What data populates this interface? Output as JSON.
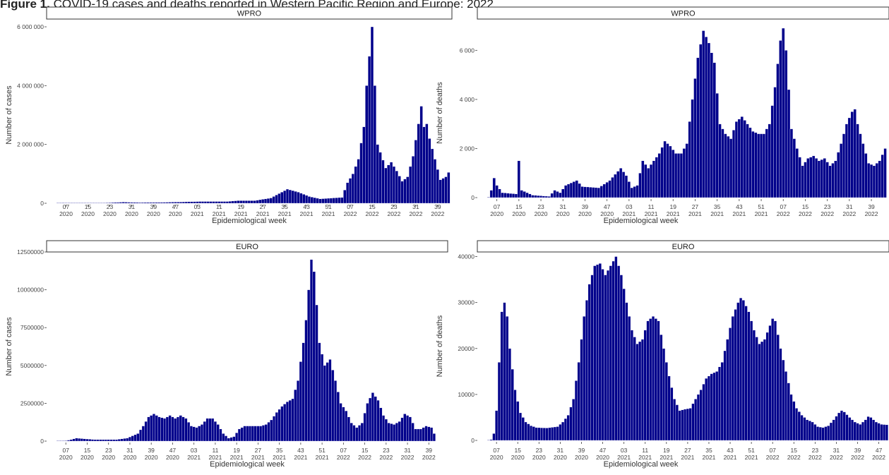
{
  "caption": {
    "label": "Figure 1.",
    "text": " COVID-19 cases and deaths reported in Western Pacific Region and Europe: 2022"
  },
  "x_ticks": [
    "07\n2020",
    "15\n2020",
    "23\n2020",
    "31\n2020",
    "39\n2020",
    "47\n2020",
    "03\n2021",
    "11\n2021",
    "19\n2021",
    "27\n2021",
    "35\n2021",
    "43\n2021",
    "51\n2021",
    "07\n2022",
    "15\n2022",
    "23\n2022",
    "31\n2022",
    "39\n2022",
    "47\n2022"
  ],
  "chart_data": [
    {
      "type": "bar",
      "panel": "WPRO",
      "title": "WPRO",
      "xlabel": "Epidemiological week",
      "ylabel": "Number of cases",
      "ylim": [
        0,
        6000000
      ],
      "y_ticks": [
        0,
        2000000,
        4000000,
        6000000
      ],
      "y_tick_labels": [
        "0",
        "2 000 000",
        "4 000 000",
        "6 000 000"
      ],
      "x_range": [
        "2020-W04",
        "2022-W51"
      ],
      "keypoints": [
        [
          4,
          5000
        ],
        [
          6,
          15000
        ],
        [
          10,
          3000
        ],
        [
          20,
          10000
        ],
        [
          28,
          40000
        ],
        [
          34,
          25000
        ],
        [
          44,
          35000
        ],
        [
          56,
          60000
        ],
        [
          66,
          60000
        ],
        [
          70,
          90000
        ],
        [
          76,
          90000
        ],
        [
          82,
          180000
        ],
        [
          86,
          380000
        ],
        [
          88,
          480000
        ],
        [
          92,
          380000
        ],
        [
          96,
          230000
        ],
        [
          100,
          150000
        ],
        [
          108,
          200000
        ],
        [
          110,
          700000
        ],
        [
          112,
          1000000
        ],
        [
          114,
          1500000
        ],
        [
          116,
          2600000
        ],
        [
          117,
          4000000
        ],
        [
          118,
          5000000
        ],
        [
          119,
          6000000
        ],
        [
          120,
          4000000
        ],
        [
          121,
          2000000
        ],
        [
          124,
          1200000
        ],
        [
          126,
          1400000
        ],
        [
          128,
          1100000
        ],
        [
          130,
          750000
        ],
        [
          132,
          900000
        ],
        [
          134,
          1600000
        ],
        [
          136,
          2700000
        ],
        [
          137,
          3300000
        ],
        [
          138,
          2600000
        ],
        [
          139,
          2700000
        ],
        [
          140,
          2200000
        ],
        [
          142,
          1500000
        ],
        [
          144,
          800000
        ],
        [
          146,
          900000
        ],
        [
          148,
          1200000
        ],
        [
          150,
          1400000
        ],
        [
          152,
          1600000
        ],
        [
          153,
          1650000
        ],
        [
          154,
          1050000
        ]
      ]
    },
    {
      "type": "bar",
      "panel": "WPRO",
      "title": "WPRO",
      "xlabel": "Epidemiological week",
      "ylabel": "Number of deaths",
      "ylim": [
        0,
        6900
      ],
      "y_ticks": [
        0,
        2000,
        4000,
        6000
      ],
      "y_tick_labels": [
        "0",
        "2 000",
        "4 000",
        "6 000"
      ],
      "x_range": [
        "2020-W04",
        "2022-W51"
      ],
      "keypoints": [
        [
          4,
          20
        ],
        [
          5,
          300
        ],
        [
          6,
          800
        ],
        [
          7,
          500
        ],
        [
          9,
          200
        ],
        [
          14,
          150
        ],
        [
          15,
          1500
        ],
        [
          16,
          300
        ],
        [
          20,
          100
        ],
        [
          26,
          50
        ],
        [
          28,
          300
        ],
        [
          30,
          200
        ],
        [
          32,
          500
        ],
        [
          36,
          700
        ],
        [
          38,
          450
        ],
        [
          44,
          400
        ],
        [
          48,
          700
        ],
        [
          52,
          1200
        ],
        [
          54,
          900
        ],
        [
          56,
          400
        ],
        [
          58,
          500
        ],
        [
          60,
          1500
        ],
        [
          62,
          1200
        ],
        [
          66,
          1800
        ],
        [
          68,
          2300
        ],
        [
          70,
          2100
        ],
        [
          72,
          1800
        ],
        [
          74,
          1800
        ],
        [
          76,
          2200
        ],
        [
          78,
          4000
        ],
        [
          80,
          5700
        ],
        [
          82,
          6800
        ],
        [
          84,
          6300
        ],
        [
          86,
          5500
        ],
        [
          88,
          3000
        ],
        [
          90,
          2600
        ],
        [
          92,
          2400
        ],
        [
          94,
          3100
        ],
        [
          96,
          3300
        ],
        [
          98,
          3000
        ],
        [
          100,
          2700
        ],
        [
          102,
          2600
        ],
        [
          104,
          2600
        ],
        [
          106,
          3000
        ],
        [
          108,
          4500
        ],
        [
          110,
          6400
        ],
        [
          111,
          6900
        ],
        [
          112,
          6000
        ],
        [
          114,
          2800
        ],
        [
          116,
          2000
        ],
        [
          118,
          1300
        ],
        [
          120,
          1600
        ],
        [
          122,
          1700
        ],
        [
          124,
          1500
        ],
        [
          126,
          1600
        ],
        [
          128,
          1300
        ],
        [
          130,
          1500
        ],
        [
          132,
          2200
        ],
        [
          134,
          3000
        ],
        [
          136,
          3500
        ],
        [
          137,
          3600
        ],
        [
          138,
          3000
        ],
        [
          140,
          2200
        ],
        [
          142,
          1400
        ],
        [
          144,
          1300
        ],
        [
          146,
          1500
        ],
        [
          148,
          2000
        ],
        [
          150,
          2400
        ],
        [
          152,
          2600
        ],
        [
          153,
          1700
        ]
      ]
    },
    {
      "type": "bar",
      "panel": "EURO",
      "title": "EURO",
      "xlabel": "Epidemiological week",
      "ylabel": "Number of cases",
      "ylim": [
        0,
        12500000
      ],
      "y_ticks": [
        0,
        2500000,
        5000000,
        7500000,
        10000000,
        12500000
      ],
      "y_tick_labels": [
        "0",
        "2500000",
        "5000000",
        "7500000",
        "10000000",
        "12500000"
      ],
      "x_range": [
        "2020-W04",
        "2022-W51"
      ],
      "keypoints": [
        [
          4,
          0
        ],
        [
          6,
          0
        ],
        [
          9,
          100000
        ],
        [
          11,
          200000
        ],
        [
          14,
          150000
        ],
        [
          18,
          100000
        ],
        [
          26,
          100000
        ],
        [
          30,
          200000
        ],
        [
          34,
          500000
        ],
        [
          36,
          1000000
        ],
        [
          38,
          1600000
        ],
        [
          40,
          1800000
        ],
        [
          42,
          1600000
        ],
        [
          44,
          1500000
        ],
        [
          46,
          1700000
        ],
        [
          48,
          1500000
        ],
        [
          50,
          1700000
        ],
        [
          52,
          1500000
        ],
        [
          54,
          1000000
        ],
        [
          56,
          900000
        ],
        [
          58,
          1100000
        ],
        [
          60,
          1500000
        ],
        [
          62,
          1500000
        ],
        [
          64,
          1100000
        ],
        [
          66,
          500000
        ],
        [
          68,
          200000
        ],
        [
          70,
          300000
        ],
        [
          72,
          800000
        ],
        [
          74,
          1000000
        ],
        [
          78,
          1000000
        ],
        [
          80,
          1000000
        ],
        [
          82,
          1100000
        ],
        [
          84,
          1400000
        ],
        [
          86,
          1900000
        ],
        [
          88,
          2300000
        ],
        [
          90,
          2600000
        ],
        [
          92,
          2800000
        ],
        [
          94,
          4000000
        ],
        [
          96,
          6500000
        ],
        [
          97,
          8000000
        ],
        [
          98,
          10000000
        ],
        [
          99,
          12000000
        ],
        [
          100,
          11200000
        ],
        [
          101,
          9000000
        ],
        [
          102,
          6500000
        ],
        [
          104,
          5000000
        ],
        [
          106,
          5400000
        ],
        [
          108,
          4000000
        ],
        [
          110,
          2500000
        ],
        [
          112,
          2000000
        ],
        [
          114,
          1200000
        ],
        [
          116,
          900000
        ],
        [
          118,
          1200000
        ],
        [
          120,
          2500000
        ],
        [
          122,
          3200000
        ],
        [
          124,
          2700000
        ],
        [
          126,
          1700000
        ],
        [
          128,
          1200000
        ],
        [
          130,
          1100000
        ],
        [
          132,
          1300000
        ],
        [
          134,
          1800000
        ],
        [
          136,
          1600000
        ],
        [
          138,
          800000
        ],
        [
          140,
          800000
        ],
        [
          142,
          1000000
        ],
        [
          144,
          900000
        ],
        [
          145,
          500000
        ]
      ]
    },
    {
      "type": "bar",
      "panel": "EURO",
      "title": "EURO",
      "xlabel": "Epidemiological week",
      "ylabel": "Number of deaths",
      "ylim": [
        0,
        41000
      ],
      "y_ticks": [
        0,
        10000,
        20000,
        30000,
        40000
      ],
      "y_tick_labels": [
        "0",
        "10000",
        "20000",
        "30000",
        "40000"
      ],
      "x_range": [
        "2020-W04",
        "2022-W51"
      ],
      "keypoints": [
        [
          4,
          0
        ],
        [
          5,
          200
        ],
        [
          6,
          1500
        ],
        [
          7,
          6500
        ],
        [
          8,
          17000
        ],
        [
          9,
          28000
        ],
        [
          10,
          30000
        ],
        [
          11,
          27000
        ],
        [
          12,
          20000
        ],
        [
          14,
          11000
        ],
        [
          16,
          6000
        ],
        [
          18,
          4000
        ],
        [
          20,
          3200
        ],
        [
          22,
          2800
        ],
        [
          26,
          2700
        ],
        [
          30,
          3000
        ],
        [
          32,
          4000
        ],
        [
          34,
          5500
        ],
        [
          36,
          9000
        ],
        [
          38,
          17000
        ],
        [
          40,
          27000
        ],
        [
          42,
          34000
        ],
        [
          44,
          38000
        ],
        [
          46,
          38500
        ],
        [
          48,
          36000
        ],
        [
          50,
          38000
        ],
        [
          52,
          40000
        ],
        [
          54,
          36000
        ],
        [
          56,
          30000
        ],
        [
          58,
          24000
        ],
        [
          60,
          21000
        ],
        [
          62,
          22000
        ],
        [
          64,
          26000
        ],
        [
          66,
          27000
        ],
        [
          68,
          26000
        ],
        [
          70,
          20000
        ],
        [
          72,
          14000
        ],
        [
          74,
          9000
        ],
        [
          76,
          6500
        ],
        [
          78,
          6800
        ],
        [
          80,
          7000
        ],
        [
          82,
          9000
        ],
        [
          84,
          11000
        ],
        [
          86,
          13500
        ],
        [
          88,
          14500
        ],
        [
          90,
          15000
        ],
        [
          92,
          17000
        ],
        [
          94,
          22000
        ],
        [
          96,
          27000
        ],
        [
          98,
          30000
        ],
        [
          99,
          31000
        ],
        [
          100,
          30500
        ],
        [
          102,
          28000
        ],
        [
          104,
          24000
        ],
        [
          106,
          21000
        ],
        [
          108,
          22000
        ],
        [
          110,
          25000
        ],
        [
          111,
          26500
        ],
        [
          112,
          26000
        ],
        [
          114,
          20000
        ],
        [
          116,
          15000
        ],
        [
          118,
          10000
        ],
        [
          120,
          7000
        ],
        [
          122,
          5500
        ],
        [
          124,
          4500
        ],
        [
          126,
          4000
        ],
        [
          128,
          3000
        ],
        [
          130,
          2800
        ],
        [
          132,
          3200
        ],
        [
          134,
          4500
        ],
        [
          136,
          6000
        ],
        [
          137,
          6500
        ],
        [
          138,
          6200
        ],
        [
          140,
          5000
        ],
        [
          142,
          4000
        ],
        [
          144,
          3500
        ],
        [
          146,
          4500
        ],
        [
          147,
          5200
        ],
        [
          148,
          5000
        ],
        [
          150,
          4000
        ],
        [
          152,
          3500
        ],
        [
          154,
          3400
        ],
        [
          156,
          3600
        ],
        [
          157,
          1800
        ]
      ]
    }
  ]
}
